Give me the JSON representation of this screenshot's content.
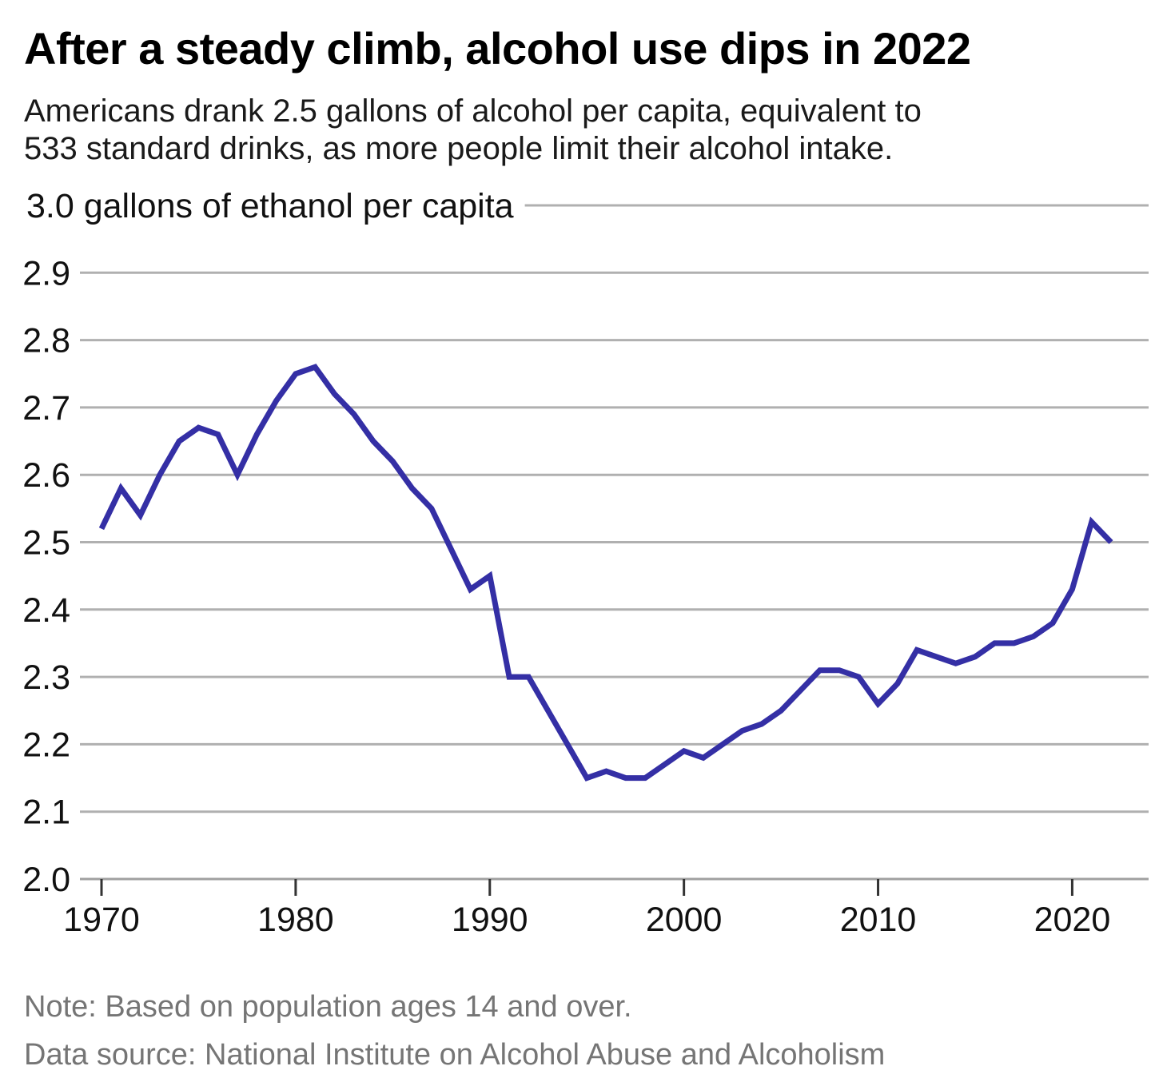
{
  "header": {
    "title": "After a steady climb, alcohol use dips in 2022",
    "subtitle_line1": "Americans drank 2.5 gallons of alcohol per capita, equivalent to",
    "subtitle_line2": "533 standard drinks, as more people limit their alcohol intake."
  },
  "footer": {
    "note": "Note: Based on population ages 14 and over.",
    "source": "Data source: National Institute on Alcohol Abuse and Alcoholism"
  },
  "chart_data": {
    "type": "line",
    "title": "After a steady climb, alcohol use dips in 2022",
    "unit_label": "3.0 gallons of ethanol per capita",
    "ylabel": "gallons of ethanol per capita",
    "xlabel": "",
    "ylim": [
      2.0,
      3.0
    ],
    "y_ticks": [
      2.0,
      2.1,
      2.2,
      2.3,
      2.4,
      2.5,
      2.6,
      2.7,
      2.8,
      2.9
    ],
    "y_top_tick": 3.0,
    "x_ticks": [
      1970,
      1980,
      1990,
      2000,
      2010,
      2020
    ],
    "grid": true,
    "legend_position": "none",
    "x": [
      1970,
      1971,
      1972,
      1973,
      1974,
      1975,
      1976,
      1977,
      1978,
      1979,
      1980,
      1981,
      1982,
      1983,
      1984,
      1985,
      1986,
      1987,
      1988,
      1989,
      1990,
      1991,
      1992,
      1993,
      1994,
      1995,
      1996,
      1997,
      1998,
      1999,
      2000,
      2001,
      2002,
      2003,
      2004,
      2005,
      2006,
      2007,
      2008,
      2009,
      2010,
      2011,
      2012,
      2013,
      2014,
      2015,
      2016,
      2017,
      2018,
      2019,
      2020,
      2021,
      2022
    ],
    "series": [
      {
        "name": "gallons of ethanol per capita",
        "values": [
          2.52,
          2.58,
          2.54,
          2.6,
          2.65,
          2.67,
          2.66,
          2.6,
          2.66,
          2.71,
          2.75,
          2.76,
          2.72,
          2.69,
          2.65,
          2.62,
          2.58,
          2.55,
          2.49,
          2.43,
          2.45,
          2.3,
          2.3,
          2.25,
          2.2,
          2.15,
          2.16,
          2.15,
          2.15,
          2.17,
          2.19,
          2.18,
          2.2,
          2.22,
          2.23,
          2.25,
          2.28,
          2.31,
          2.31,
          2.3,
          2.26,
          2.29,
          2.34,
          2.33,
          2.32,
          2.33,
          2.35,
          2.35,
          2.36,
          2.38,
          2.43,
          2.53,
          2.5
        ]
      }
    ],
    "colors": {
      "line": "#342FA5",
      "grid": "#B0B0B0",
      "axis": "#A0A0A0",
      "tick": "#333333",
      "label": "#111111"
    }
  }
}
